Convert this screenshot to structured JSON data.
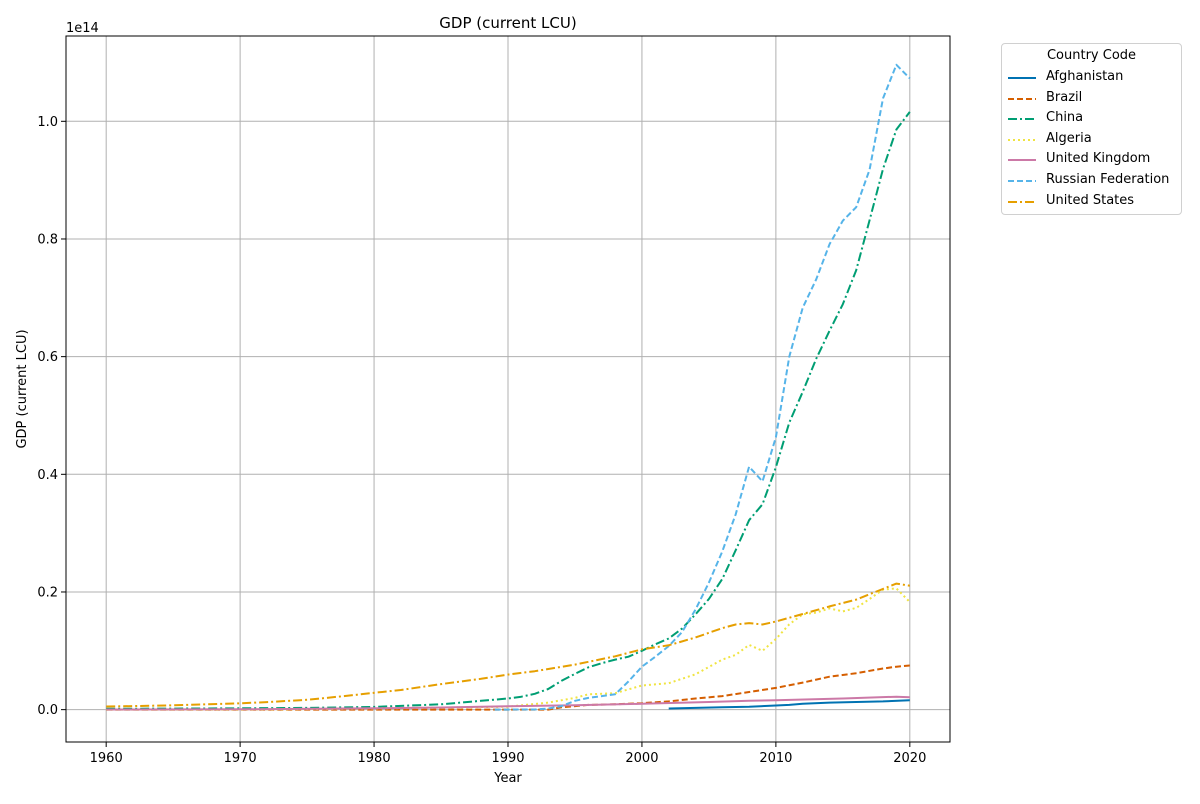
{
  "chart_data": {
    "type": "line",
    "title": "GDP (current LCU)",
    "xlabel": "Year",
    "ylabel": "GDP (current LCU)",
    "y_scale_label": "1e14",
    "xlim": [
      1957,
      2023
    ],
    "ylim": [
      -0.055,
      1.145
    ],
    "x_ticks": [
      1960,
      1970,
      1980,
      1990,
      2000,
      2010,
      2020
    ],
    "x_tick_labels": [
      "1960",
      "1970",
      "1980",
      "1990",
      "2000",
      "2010",
      "2020"
    ],
    "y_ticks": [
      0.0,
      0.2,
      0.4,
      0.6,
      0.8,
      1.0
    ],
    "y_tick_labels": [
      "0.0",
      "0.2",
      "0.4",
      "0.6",
      "0.8",
      "1.0"
    ],
    "grid": true,
    "legend_title": "Country Code",
    "legend_position": "outside-top-right",
    "series": [
      {
        "name": "Afghanistan",
        "color": "#0072b2",
        "dash": "solid",
        "points": [
          [
            2002,
            0.002
          ],
          [
            2004,
            0.003
          ],
          [
            2006,
            0.004
          ],
          [
            2008,
            0.005
          ],
          [
            2010,
            0.007
          ],
          [
            2011,
            0.008
          ],
          [
            2012,
            0.01
          ],
          [
            2014,
            0.012
          ],
          [
            2016,
            0.013
          ],
          [
            2018,
            0.014
          ],
          [
            2020,
            0.016
          ]
        ]
      },
      {
        "name": "Brazil",
        "color": "#d55e00",
        "dash": "dashed",
        "points": [
          [
            1960,
            0.0
          ],
          [
            1970,
            0.0
          ],
          [
            1980,
            0.0
          ],
          [
            1990,
            0.0
          ],
          [
            1993,
            0.0
          ],
          [
            1994,
            0.004
          ],
          [
            1996,
            0.008
          ],
          [
            1998,
            0.009
          ],
          [
            2000,
            0.011
          ],
          [
            2002,
            0.014
          ],
          [
            2004,
            0.019
          ],
          [
            2006,
            0.023
          ],
          [
            2008,
            0.03
          ],
          [
            2010,
            0.037
          ],
          [
            2012,
            0.046
          ],
          [
            2014,
            0.056
          ],
          [
            2016,
            0.062
          ],
          [
            2018,
            0.07
          ],
          [
            2019,
            0.073
          ],
          [
            2020,
            0.075
          ]
        ]
      },
      {
        "name": "China",
        "color": "#009e73",
        "dash": "dashdot",
        "points": [
          [
            1960,
            0.0015
          ],
          [
            1965,
            0.0017
          ],
          [
            1970,
            0.0023
          ],
          [
            1975,
            0.003
          ],
          [
            1980,
            0.0046
          ],
          [
            1985,
            0.009
          ],
          [
            1988,
            0.015
          ],
          [
            1990,
            0.019
          ],
          [
            1991,
            0.022
          ],
          [
            1992,
            0.027
          ],
          [
            1993,
            0.035
          ],
          [
            1994,
            0.049
          ],
          [
            1995,
            0.061
          ],
          [
            1996,
            0.072
          ],
          [
            1997,
            0.079
          ],
          [
            1998,
            0.085
          ],
          [
            1999,
            0.09
          ],
          [
            2000,
            0.1
          ],
          [
            2001,
            0.111
          ],
          [
            2002,
            0.121
          ],
          [
            2003,
            0.138
          ],
          [
            2004,
            0.162
          ],
          [
            2005,
            0.188
          ],
          [
            2006,
            0.222
          ],
          [
            2007,
            0.271
          ],
          [
            2008,
            0.322
          ],
          [
            2009,
            0.349
          ],
          [
            2010,
            0.412
          ],
          [
            2011,
            0.488
          ],
          [
            2012,
            0.54
          ],
          [
            2013,
            0.596
          ],
          [
            2014,
            0.644
          ],
          [
            2015,
            0.689
          ],
          [
            2016,
            0.747
          ],
          [
            2017,
            0.832
          ],
          [
            2018,
            0.919
          ],
          [
            2019,
            0.986
          ],
          [
            2020,
            1.016
          ]
        ]
      },
      {
        "name": "Algeria",
        "color": "#f0e442",
        "dash": "dotted",
        "points": [
          [
            1960,
            0.0
          ],
          [
            1970,
            0.0
          ],
          [
            1980,
            0.002
          ],
          [
            1990,
            0.005
          ],
          [
            1993,
            0.012
          ],
          [
            1995,
            0.02
          ],
          [
            1996,
            0.026
          ],
          [
            1998,
            0.028
          ],
          [
            2000,
            0.041
          ],
          [
            2002,
            0.045
          ],
          [
            2004,
            0.06
          ],
          [
            2006,
            0.085
          ],
          [
            2007,
            0.093
          ],
          [
            2008,
            0.11
          ],
          [
            2009,
            0.1
          ],
          [
            2010,
            0.12
          ],
          [
            2011,
            0.145
          ],
          [
            2012,
            0.162
          ],
          [
            2013,
            0.165
          ],
          [
            2014,
            0.172
          ],
          [
            2015,
            0.167
          ],
          [
            2016,
            0.173
          ],
          [
            2017,
            0.188
          ],
          [
            2018,
            0.204
          ],
          [
            2019,
            0.206
          ],
          [
            2020,
            0.183
          ]
        ]
      },
      {
        "name": "United Kingdom",
        "color": "#cc79a7",
        "dash": "solid",
        "points": [
          [
            1960,
            0.0003
          ],
          [
            1970,
            0.0005
          ],
          [
            1980,
            0.0023
          ],
          [
            1985,
            0.0036
          ],
          [
            1990,
            0.0058
          ],
          [
            1995,
            0.0075
          ],
          [
            2000,
            0.01
          ],
          [
            2005,
            0.013
          ],
          [
            2008,
            0.015
          ],
          [
            2010,
            0.016
          ],
          [
            2015,
            0.019
          ],
          [
            2019,
            0.022
          ],
          [
            2020,
            0.021
          ]
        ]
      },
      {
        "name": "Russian Federation",
        "color": "#56b4e9",
        "dash": "dashed",
        "points": [
          [
            1989,
            0.0
          ],
          [
            1992,
            0.0002
          ],
          [
            1993,
            0.002
          ],
          [
            1994,
            0.006
          ],
          [
            1995,
            0.015
          ],
          [
            1996,
            0.02
          ],
          [
            1997,
            0.023
          ],
          [
            1998,
            0.026
          ],
          [
            1999,
            0.048
          ],
          [
            2000,
            0.073
          ],
          [
            2001,
            0.09
          ],
          [
            2002,
            0.108
          ],
          [
            2003,
            0.132
          ],
          [
            2004,
            0.17
          ],
          [
            2005,
            0.216
          ],
          [
            2006,
            0.269
          ],
          [
            2007,
            0.332
          ],
          [
            2008,
            0.413
          ],
          [
            2009,
            0.388
          ],
          [
            2010,
            0.463
          ],
          [
            2011,
            0.6
          ],
          [
            2012,
            0.683
          ],
          [
            2013,
            0.731
          ],
          [
            2014,
            0.791
          ],
          [
            2015,
            0.831
          ],
          [
            2016,
            0.854
          ],
          [
            2017,
            0.918
          ],
          [
            2018,
            1.039
          ],
          [
            2019,
            1.096
          ],
          [
            2020,
            1.073
          ]
        ]
      },
      {
        "name": "United States",
        "color": "#e69f00",
        "dash": "dashdot",
        "points": [
          [
            1960,
            0.0054
          ],
          [
            1962,
            0.006
          ],
          [
            1965,
            0.0074
          ],
          [
            1968,
            0.0094
          ],
          [
            1970,
            0.0107
          ],
          [
            1972,
            0.0128
          ],
          [
            1975,
            0.0168
          ],
          [
            1978,
            0.0235
          ],
          [
            1980,
            0.0286
          ],
          [
            1982,
            0.0334
          ],
          [
            1985,
            0.0434
          ],
          [
            1988,
            0.0524
          ],
          [
            1990,
            0.0596
          ],
          [
            1992,
            0.0653
          ],
          [
            1995,
            0.0765
          ],
          [
            1998,
            0.0907
          ],
          [
            2000,
            0.1025
          ],
          [
            2002,
            0.1094
          ],
          [
            2004,
            0.1227
          ],
          [
            2006,
            0.1386
          ],
          [
            2007,
            0.1448
          ],
          [
            2008,
            0.1471
          ],
          [
            2009,
            0.1448
          ],
          [
            2010,
            0.1499
          ],
          [
            2012,
            0.1625
          ],
          [
            2014,
            0.1755
          ],
          [
            2016,
            0.1871
          ],
          [
            2018,
            0.2053
          ],
          [
            2019,
            0.2143
          ],
          [
            2020,
            0.2106
          ]
        ]
      }
    ]
  }
}
